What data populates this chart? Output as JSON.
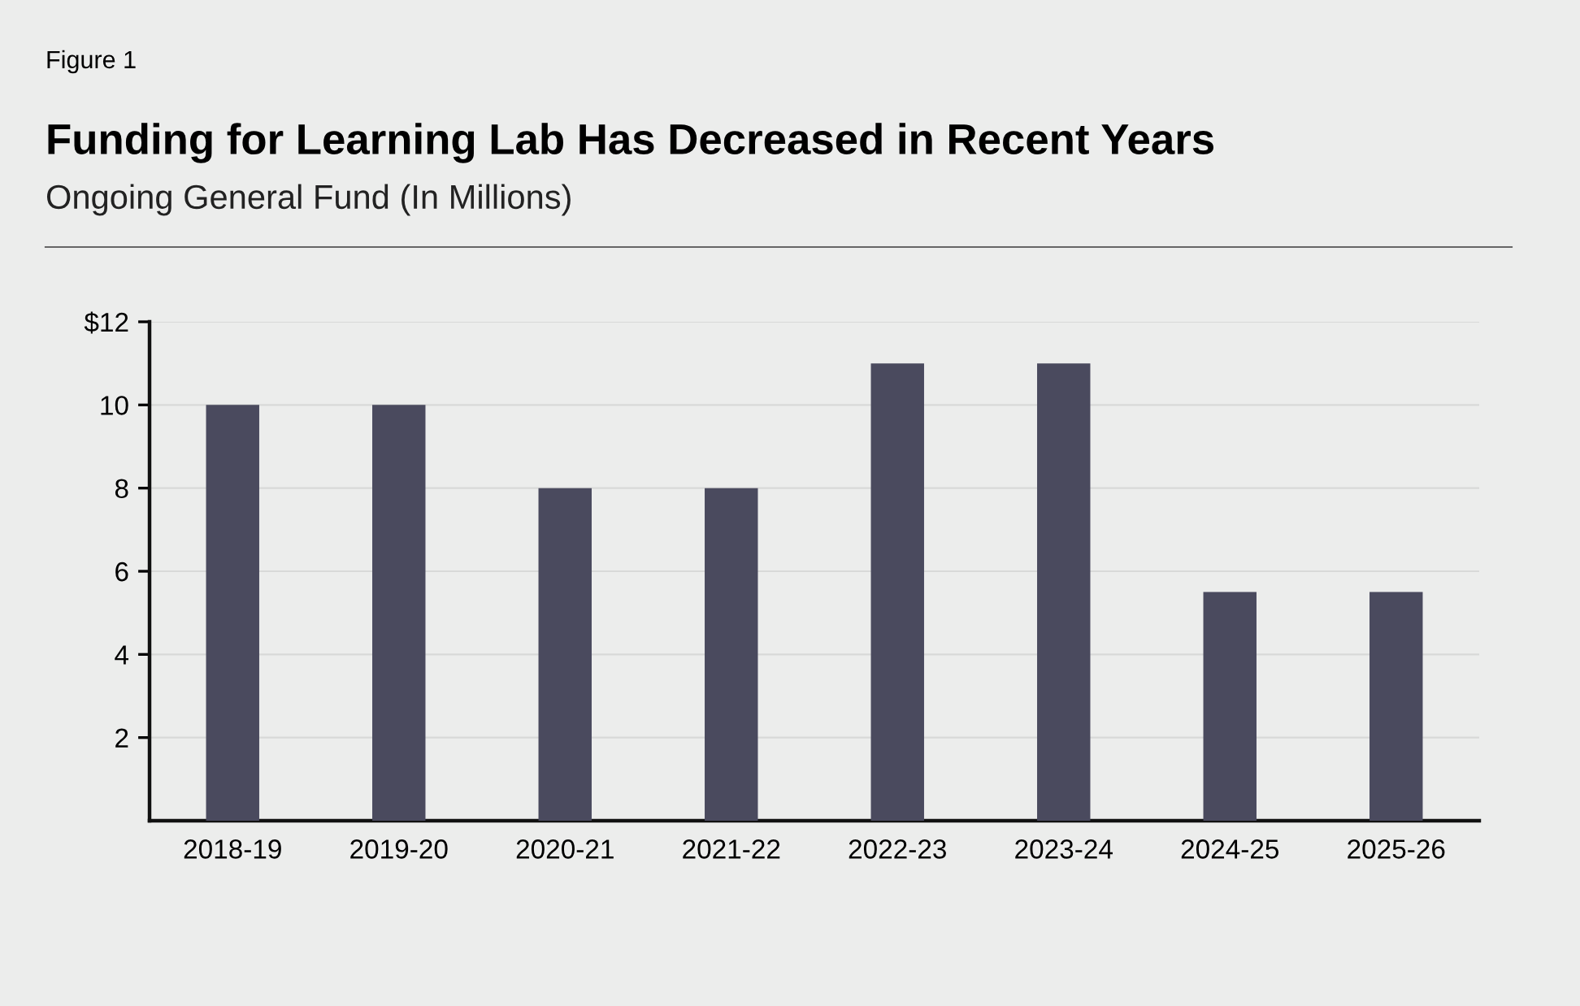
{
  "chart_data": {
    "type": "bar",
    "title": "Funding for Learning Lab Has Decreased in Recent Years",
    "subtitle": "Ongoing General Fund (In Millions)",
    "annotations": [
      "Figure 1"
    ],
    "categories": [
      "2018-19",
      "2019-20",
      "2020-21",
      "2021-22",
      "2022-23",
      "2023-24",
      "2024-25",
      "2025-26"
    ],
    "values": [
      10,
      10,
      8,
      8,
      11,
      11,
      5.5,
      5.5
    ],
    "color": "#4a4a5e",
    "ylim": [
      0,
      12
    ],
    "yticks": [
      2,
      4,
      6,
      8,
      10,
      {
        "value": 12,
        "label": "$12"
      }
    ],
    "grid": "y"
  }
}
